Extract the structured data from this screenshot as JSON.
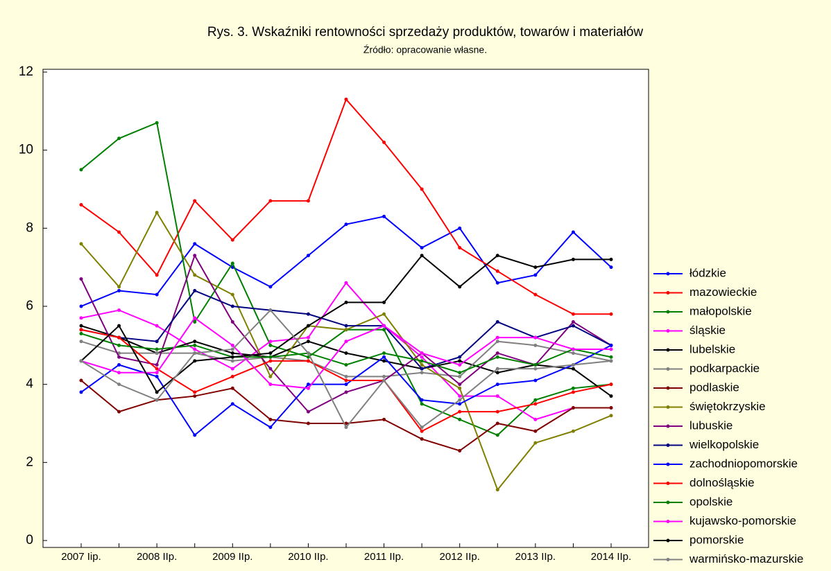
{
  "chart_data": {
    "type": "line",
    "title": "Rys. 3. Wskaźniki rentowności sprzedaży  produktów, towarów i materiałów",
    "subtitle": "Źródło: opracowanie własne.",
    "categories": [
      "2007 Iip.",
      null,
      "2008 IIp.",
      null,
      "2009 IIp.",
      null,
      "2010 IIp.",
      null,
      "2011 IIp.",
      null,
      "2012 IIp.",
      null,
      "2013 IIp.",
      null,
      "2014 IIp."
    ],
    "ylim": [
      0,
      12
    ],
    "yticks": [
      0,
      2,
      4,
      6,
      8,
      10,
      12
    ],
    "grid": false,
    "legend": "right",
    "series": [
      {
        "name": "łódzkie",
        "color": "#0000ff",
        "values": [
          6.0,
          6.4,
          6.3,
          7.6,
          7.0,
          6.5,
          7.3,
          8.1,
          8.3,
          7.5,
          8.0,
          6.6,
          6.8,
          7.9,
          7.0
        ]
      },
      {
        "name": "mazowieckie",
        "color": "#ff0000",
        "values": [
          8.6,
          7.9,
          6.8,
          8.7,
          7.7,
          8.7,
          8.7,
          11.3,
          10.2,
          9.0,
          7.5,
          6.9,
          6.3,
          5.8,
          5.8
        ]
      },
      {
        "name": "małopolskie",
        "color": "#008000",
        "values": [
          9.5,
          10.3,
          10.7,
          5.6,
          7.1,
          5.0,
          4.7,
          5.4,
          5.4,
          3.5,
          3.1,
          2.7,
          3.6,
          3.9,
          4.0
        ]
      },
      {
        "name": "śląskie",
        "color": "#ff00ff",
        "values": [
          5.7,
          5.9,
          5.5,
          4.9,
          4.4,
          5.1,
          5.2,
          6.6,
          5.5,
          4.7,
          3.7,
          3.7,
          3.1,
          3.4,
          3.4
        ]
      },
      {
        "name": "lubelskie",
        "color": "#000000",
        "values": [
          5.5,
          5.2,
          4.8,
          5.1,
          4.8,
          4.7,
          5.1,
          4.8,
          4.6,
          4.4,
          4.6,
          4.3,
          4.5,
          4.4,
          3.7
        ]
      },
      {
        "name": "podkarpackie",
        "color": "#808080",
        "values": [
          5.1,
          4.8,
          4.8,
          4.8,
          4.6,
          4.7,
          4.6,
          4.2,
          4.2,
          4.3,
          4.2,
          5.1,
          5.0,
          4.8,
          4.6
        ]
      },
      {
        "name": "podlaskie",
        "color": "#800000",
        "values": [
          4.1,
          3.3,
          3.6,
          3.7,
          3.9,
          3.1,
          3.0,
          3.0,
          3.1,
          2.6,
          2.3,
          3.0,
          2.8,
          3.4,
          3.4
        ]
      },
      {
        "name": "świętokrzyskie",
        "color": "#808000",
        "values": [
          7.6,
          6.5,
          8.4,
          6.8,
          6.3,
          4.2,
          5.5,
          5.4,
          5.8,
          4.5,
          3.9,
          1.3,
          2.5,
          2.8,
          3.2
        ]
      },
      {
        "name": "lubuskie",
        "color": "#800080",
        "values": [
          6.7,
          4.7,
          4.5,
          7.3,
          5.6,
          4.4,
          3.3,
          3.8,
          4.1,
          4.8,
          4.0,
          4.8,
          4.5,
          5.6,
          5.0
        ]
      },
      {
        "name": "wielkopolskie",
        "color": "#000080",
        "values": [
          5.4,
          5.2,
          5.1,
          6.4,
          6.0,
          5.9,
          5.8,
          5.5,
          5.5,
          4.4,
          4.7,
          5.6,
          5.2,
          5.5,
          5.0
        ]
      },
      {
        "name": "zachodniopomorskie",
        "color": "#0000ff",
        "values": [
          3.8,
          4.5,
          4.2,
          2.7,
          3.5,
          2.9,
          4.0,
          4.0,
          4.7,
          3.6,
          3.5,
          4.0,
          4.1,
          4.5,
          5.0
        ]
      },
      {
        "name": "dolnośląskie",
        "color": "#ff0000",
        "values": [
          5.4,
          5.2,
          4.4,
          3.8,
          4.2,
          4.6,
          4.6,
          4.1,
          4.1,
          2.8,
          3.3,
          3.3,
          3.5,
          3.8,
          4.0
        ]
      },
      {
        "name": "opolskie",
        "color": "#008000",
        "values": [
          5.3,
          5.0,
          4.9,
          5.0,
          4.7,
          4.7,
          4.8,
          4.5,
          4.8,
          4.6,
          4.3,
          4.7,
          4.5,
          4.9,
          4.7
        ]
      },
      {
        "name": "kujawsko-pomorskie",
        "color": "#ff00ff",
        "values": [
          4.6,
          4.3,
          4.3,
          5.7,
          5.0,
          4.0,
          3.9,
          5.1,
          5.5,
          4.8,
          4.5,
          5.2,
          5.2,
          4.9,
          4.9
        ]
      },
      {
        "name": "pomorskie",
        "color": "#000000",
        "values": [
          4.6,
          5.5,
          3.8,
          4.6,
          4.7,
          4.8,
          5.5,
          6.1,
          6.1,
          7.3,
          6.5,
          7.3,
          7.0,
          7.2,
          7.2
        ]
      },
      {
        "name": "warmińsko-mazurskie",
        "color": "#808080",
        "values": [
          4.6,
          4.0,
          3.6,
          4.8,
          4.9,
          5.9,
          4.8,
          2.9,
          4.1,
          2.9,
          3.6,
          4.4,
          4.4,
          4.5,
          4.6
        ]
      }
    ]
  }
}
